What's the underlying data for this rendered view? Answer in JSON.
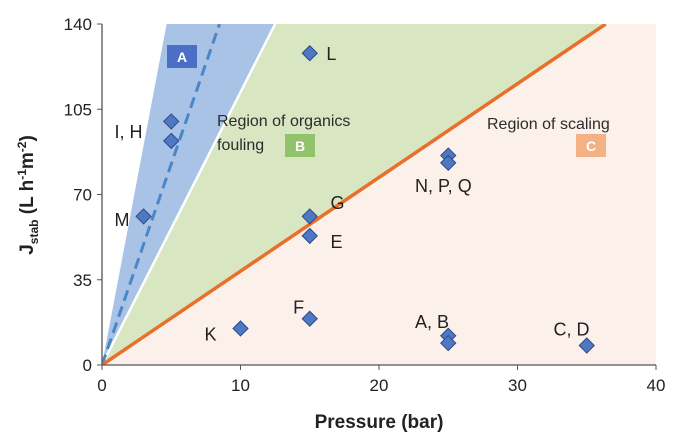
{
  "chart_data": {
    "type": "scatter",
    "xlabel": "Pressure (bar)",
    "ylabel_main": "J",
    "ylabel_sub": "stab",
    "ylabel_rest": " (L h",
    "ylabel_sup1": "-1",
    "ylabel_mid": "m",
    "ylabel_sup2": "-2",
    "ylabel_end": ")",
    "xlim": [
      0,
      40
    ],
    "ylim": [
      0,
      140
    ],
    "xticks": [
      "0",
      "10",
      "20",
      "30",
      "40"
    ],
    "yticks": [
      "0",
      "35",
      "70",
      "105",
      "140"
    ],
    "xtick_values": [
      0,
      10,
      20,
      30,
      40
    ],
    "ytick_values": [
      0,
      35,
      70,
      105,
      140
    ],
    "grid": false,
    "boundary_lines": {
      "organics_vs_scaling_slope": 3.85,
      "steep_dashed_slope": 16.5,
      "steep_solid_slope": 11.2
    },
    "regions": [
      {
        "badge": "A",
        "color": "#4a6fc4",
        "fill": "#a9c3e6",
        "label": ""
      },
      {
        "badge": "B",
        "color": "#92c36a",
        "fill": "#d9e6c2",
        "label_line1": "Region of organics",
        "label_line2": "fouling"
      },
      {
        "badge": "C",
        "color": "#f4b183",
        "fill": "#fcf0ea",
        "label_line1": "Region of scaling",
        "label_line2": ""
      }
    ],
    "points": [
      {
        "x": 15,
        "y": 128
      },
      {
        "x": 5,
        "y": 100
      },
      {
        "x": 5,
        "y": 92
      },
      {
        "x": 3,
        "y": 61
      },
      {
        "x": 25,
        "y": 86
      },
      {
        "x": 25,
        "y": 83
      },
      {
        "x": 15,
        "y": 61
      },
      {
        "x": 15,
        "y": 53
      },
      {
        "x": 15,
        "y": 19
      },
      {
        "x": 10,
        "y": 15
      },
      {
        "x": 25,
        "y": 12
      },
      {
        "x": 25,
        "y": 9
      },
      {
        "x": 35,
        "y": 8
      }
    ],
    "annotations": [
      {
        "text": "L",
        "x": 16.2,
        "y": 128
      },
      {
        "text": "I, H",
        "x": 0.9,
        "y": 96
      },
      {
        "text": "M",
        "x": 0.9,
        "y": 60
      },
      {
        "text": "N, P, Q",
        "x": 22.6,
        "y": 74
      },
      {
        "text": "G",
        "x": 16.5,
        "y": 67
      },
      {
        "text": "E",
        "x": 16.5,
        "y": 51
      },
      {
        "text": "F",
        "x": 13.8,
        "y": 24
      },
      {
        "text": "K",
        "x": 7.4,
        "y": 13
      },
      {
        "text": "A, B",
        "x": 22.6,
        "y": 18
      },
      {
        "text": "C, D",
        "x": 32.6,
        "y": 15
      }
    ],
    "colors": {
      "marker": "#4f77c4",
      "marker_edge": "#2a4a8a",
      "orange_line": "#e8702a",
      "blue_dashed": "#4a86c8",
      "axis": "#555555"
    }
  }
}
